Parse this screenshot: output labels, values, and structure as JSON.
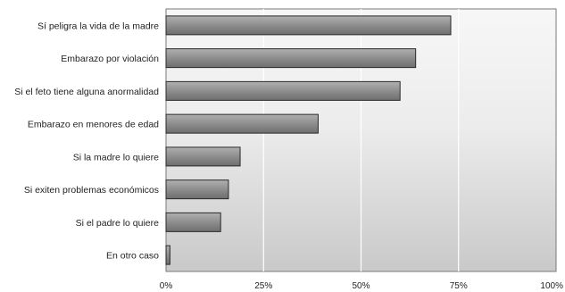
{
  "chart_data": {
    "type": "bar",
    "orientation": "horizontal",
    "categories": [
      "Sí peligra la vida de la madre",
      "Embarazo por violación",
      "Si el feto tiene alguna anormalidad",
      "Embarazo en menores de edad",
      "Si la madre lo quiere",
      "Si exiten problemas económicos",
      "Si el padre lo quiere",
      "En otro caso"
    ],
    "values": [
      73,
      64,
      60,
      39,
      19,
      16,
      14,
      1
    ],
    "xlim": [
      0,
      100
    ],
    "x_ticks": [
      "0%",
      "25%",
      "50%",
      "75%",
      "100%"
    ],
    "grid": true,
    "legend": "none",
    "colors": {
      "bar_fill": "#8a8a8a",
      "bar_stroke": "#2a2a2a",
      "plot_background_top": "#f7f7f7",
      "plot_background_bottom": "#c9c9c9",
      "grid": "#ffffff"
    }
  }
}
